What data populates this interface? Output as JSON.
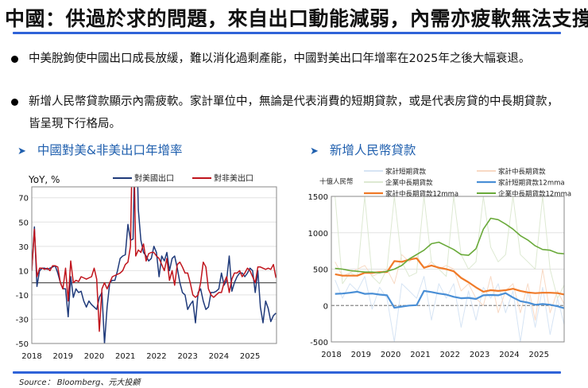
{
  "title": "中國：供過於求的問題，來自出口動能減弱，內需亦疲軟無法支撐",
  "bullets": [
    "中美脫鉤使中國出口成長放緩，難以消化過剩產能，中國對美出口年增率在2025年之後大幅衰退。",
    "新增人民幣貸款顯示內需疲軟。家計單位中，無論是代表消費的短期貸款，或是代表房貸的中長期貸款，皆呈現下行格局。"
  ],
  "sections": [
    {
      "title": "中國對美&非美出口年增率"
    },
    {
      "title": "新增人民幣貸款"
    }
  ],
  "source": "Source： Bloomberg、元大投顧",
  "colors": {
    "accent": "#2f63d8",
    "section": "#1f5fae"
  },
  "chart_data": [
    {
      "type": "line",
      "ylabel": "YoY, %",
      "ylim": [
        -50,
        79
      ],
      "yticks": [
        "70",
        "50",
        "30",
        "10",
        "-10",
        "-30",
        "-50"
      ],
      "ytick_values": [
        70,
        50,
        30,
        10,
        -10,
        -30,
        -50
      ],
      "xticks": [
        "2018",
        "2019",
        "2020",
        "2021",
        "2022",
        "2023",
        "2024",
        "2025"
      ],
      "frequency": "monthly",
      "start": "2018-01",
      "grid": true,
      "legend": "top",
      "series": [
        {
          "name": "對美國出口",
          "color": "#1f3a7a",
          "values": [
            10,
            46,
            -3,
            10,
            12,
            12,
            11,
            12,
            13,
            14,
            8,
            0,
            -5,
            -5,
            -28,
            5,
            -12,
            -5,
            -8,
            -7,
            -15,
            -20,
            -15,
            -18,
            -20,
            -22,
            -12,
            -8,
            -50,
            -20,
            0,
            2,
            2,
            10,
            20,
            22,
            23,
            48,
            35,
            36,
            150,
            60,
            35,
            25,
            22,
            18,
            20,
            30,
            25,
            5,
            22,
            18,
            25,
            10,
            20,
            22,
            12,
            0,
            -8,
            -10,
            -22,
            -18,
            -15,
            -33,
            -8,
            -5,
            -15,
            -22,
            -20,
            -8,
            -8,
            -7,
            -5,
            8,
            -2,
            2,
            22,
            -7,
            0,
            5,
            8,
            8,
            5,
            8,
            12,
            10,
            -8,
            10,
            -20,
            -33,
            -15,
            -21,
            -32,
            -27,
            -25
          ]
        },
        {
          "name": "對非美出口",
          "color": "#c0141c",
          "values": [
            10,
            44,
            5,
            12,
            12,
            11,
            12,
            10,
            14,
            14,
            13,
            0,
            -5,
            12,
            -15,
            18,
            0,
            2,
            1,
            5,
            4,
            3,
            4,
            5,
            12,
            3,
            -40,
            -5,
            0,
            -5,
            0,
            5,
            6,
            7,
            8,
            10,
            15,
            17,
            30,
            150,
            22,
            27,
            25,
            32,
            18,
            24,
            25,
            25,
            22,
            20,
            15,
            10,
            20,
            2,
            10,
            -2,
            15,
            17,
            13,
            8,
            8,
            0,
            -10,
            -12,
            -10,
            0,
            17,
            13,
            -5,
            -10,
            -12,
            -10,
            -8,
            -8,
            0,
            5,
            -8,
            3,
            8,
            8,
            10,
            5,
            8,
            12,
            10,
            5,
            0,
            13,
            13,
            12,
            11,
            12,
            11,
            15,
            4
          ]
        }
      ]
    },
    {
      "type": "line",
      "ylabel": "十億人民幣",
      "ylim": [
        -500,
        1500
      ],
      "yticks": [
        "1500",
        "1000",
        "500",
        "0",
        "-500"
      ],
      "ytick_values": [
        1500,
        1000,
        500,
        0,
        -500
      ],
      "xticks": [
        "2018",
        "2019",
        "2020",
        "2021",
        "2022",
        "2023",
        "2024",
        "2025"
      ],
      "frequency": "quarterly",
      "start": "2018-Q1",
      "grid": true,
      "legend": "top",
      "series": [
        {
          "name": "家計短期貸款",
          "color": "#d6e4f4",
          "values": [
            350,
            100,
            300,
            200,
            400,
            -50,
            250,
            100,
            -500,
            300,
            200,
            100,
            400,
            -200,
            300,
            100,
            300,
            -300,
            200,
            -200,
            250,
            100,
            300,
            -100,
            200,
            -500,
            200,
            -300,
            250,
            -400,
            100,
            -300
          ]
        },
        {
          "name": "家計中長期貸款",
          "color": "#f8d9c4",
          "values": [
            600,
            400,
            450,
            500,
            550,
            400,
            450,
            500,
            300,
            700,
            600,
            700,
            500,
            600,
            500,
            550,
            500,
            200,
            300,
            100,
            0,
            400,
            -100,
            200,
            300,
            -100,
            300,
            -200,
            500,
            -100,
            200,
            0
          ]
        },
        {
          "name": "企業中長期貸款",
          "color": "#dde9d2",
          "values": [
            1500,
            300,
            450,
            400,
            1500,
            400,
            300,
            500,
            1500,
            600,
            400,
            450,
            1500,
            600,
            500,
            400,
            1500,
            700,
            500,
            600,
            1500,
            800,
            600,
            700,
            1500,
            700,
            600,
            500,
            1500,
            500,
            100,
            300
          ]
        },
        {
          "name": "家計短期貸款12mma",
          "color": "#4a8fd6",
          "values": [
            160,
            165,
            175,
            190,
            160,
            165,
            150,
            140,
            -30,
            -15,
            0,
            5,
            200,
            185,
            165,
            150,
            120,
            100,
            105,
            90,
            140,
            145,
            140,
            170,
            110,
            60,
            40,
            10,
            20,
            10,
            -10,
            -40
          ]
        },
        {
          "name": "家計中長期貸款12mma",
          "color": "#f07a28",
          "values": [
            430,
            410,
            410,
            410,
            450,
            450,
            460,
            460,
            610,
            600,
            630,
            650,
            520,
            550,
            520,
            500,
            470,
            380,
            320,
            250,
            190,
            210,
            200,
            210,
            230,
            200,
            180,
            170,
            175,
            175,
            170,
            150
          ]
        },
        {
          "name": "企業中長期貸款12mma",
          "color": "#6aaa3a",
          "values": [
            510,
            500,
            480,
            470,
            460,
            460,
            450,
            470,
            500,
            550,
            640,
            700,
            760,
            850,
            870,
            820,
            770,
            700,
            690,
            780,
            1050,
            1200,
            1180,
            1120,
            1050,
            960,
            900,
            820,
            770,
            760,
            720,
            710
          ]
        }
      ]
    }
  ]
}
